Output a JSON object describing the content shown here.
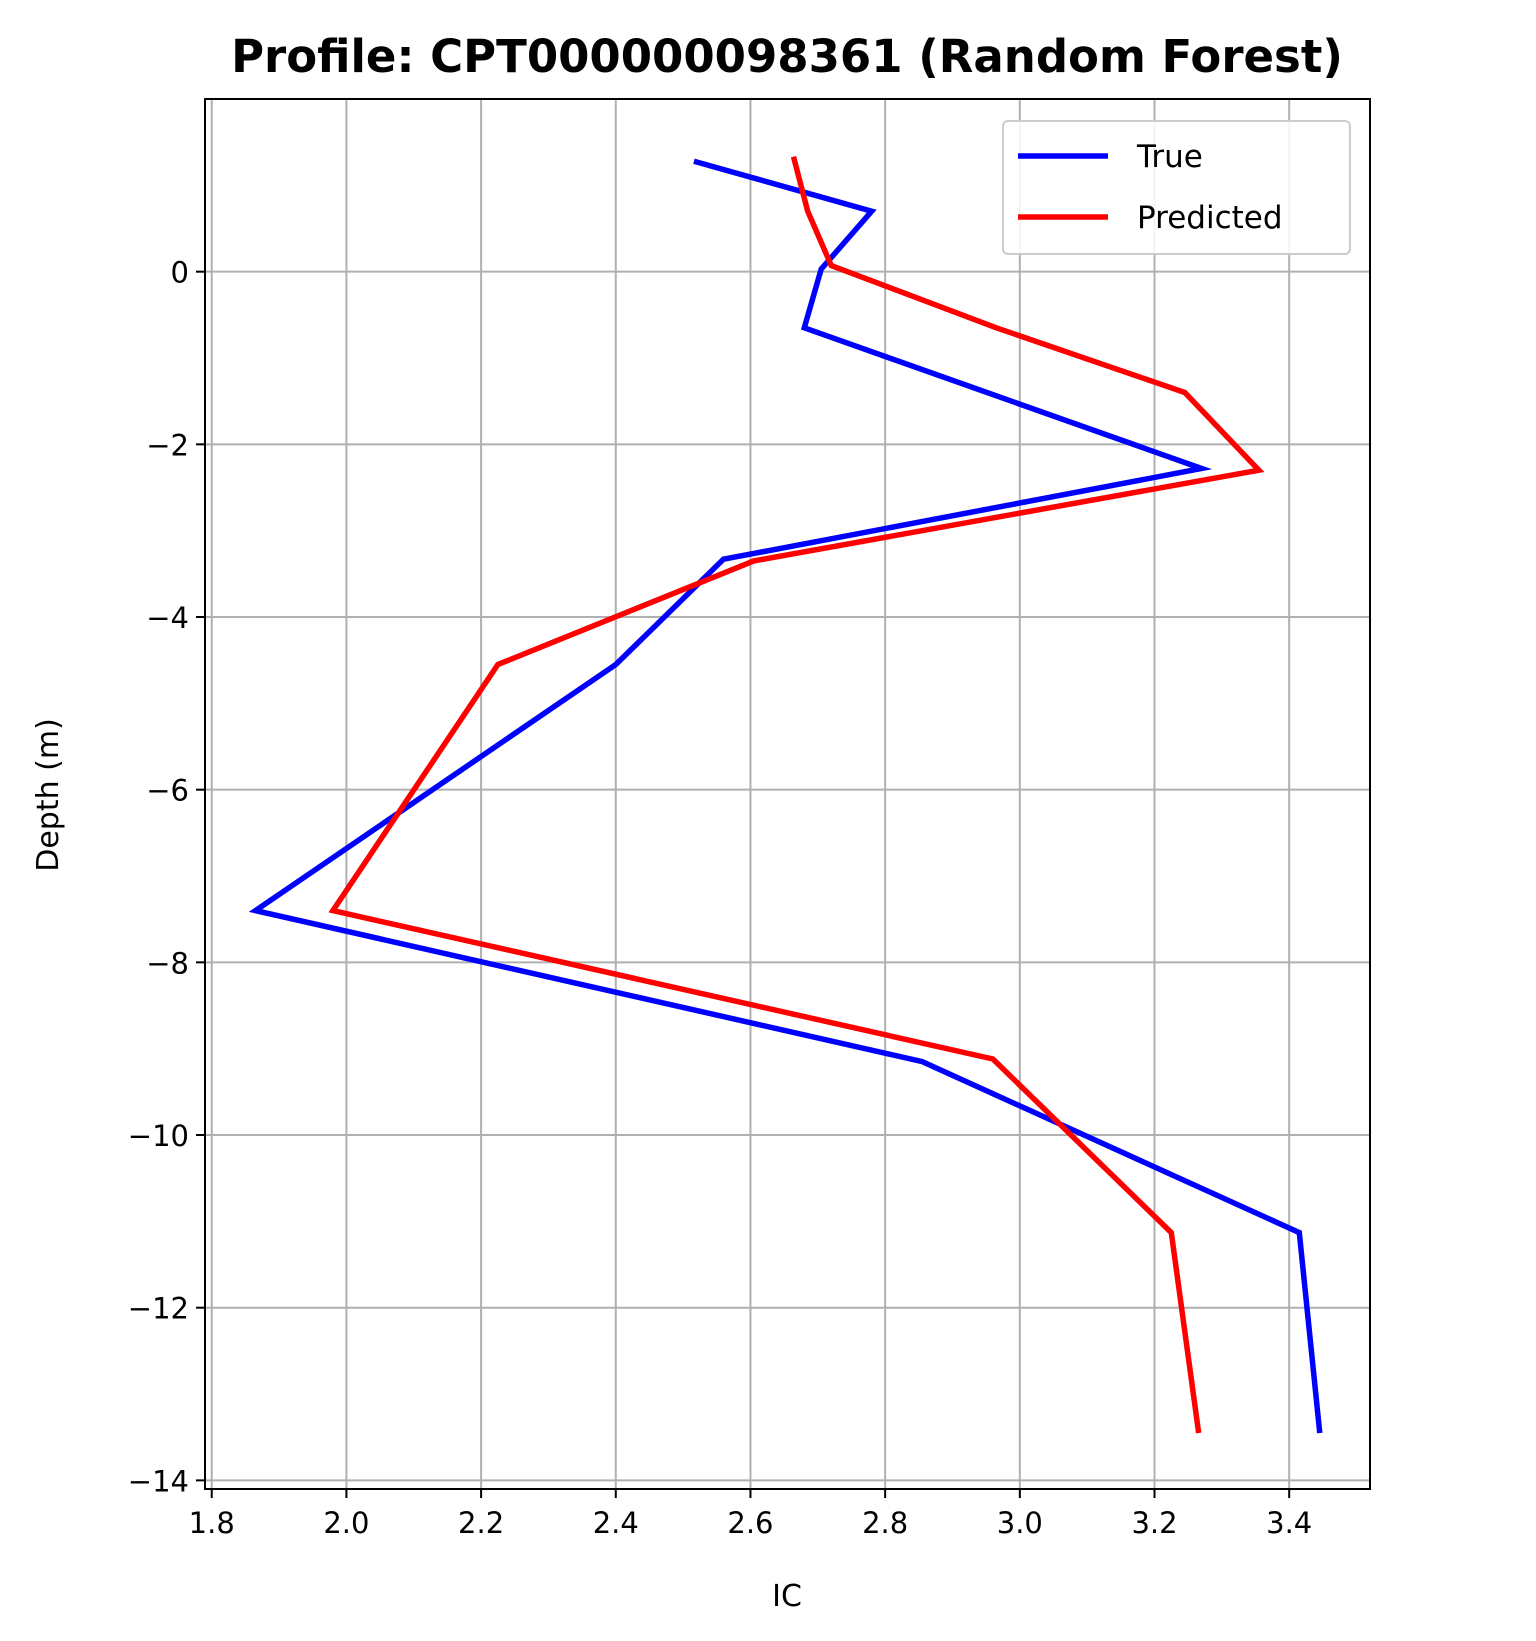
{
  "chart_data": {
    "type": "line",
    "title": "Profile: CPT000000098361 (Random Forest)",
    "xlabel": "IC",
    "ylabel": "Depth (m)",
    "xlim": [
      1.79,
      3.52
    ],
    "ylim": [
      -14.1,
      2.0
    ],
    "xticks": [
      1.8,
      2.0,
      2.2,
      2.4,
      2.6,
      2.8,
      3.0,
      3.2,
      3.4
    ],
    "xtick_labels": [
      "1.8",
      "2.0",
      "2.2",
      "2.4",
      "2.6",
      "2.8",
      "3.0",
      "3.2",
      "3.4"
    ],
    "yticks": [
      0,
      -2,
      -4,
      -6,
      -8,
      -10,
      -12,
      -14
    ],
    "ytick_labels": [
      "0",
      "−2",
      "−4",
      "−6",
      "−8",
      "−10",
      "−12",
      "−14"
    ],
    "grid": true,
    "legend_position": "top-right",
    "series": [
      {
        "name": "True",
        "color": "#0000ff",
        "x": [
          2.52,
          2.78,
          2.705,
          2.68,
          3.27,
          2.56,
          2.4,
          1.865,
          2.855,
          3.415,
          3.445
        ],
        "y": [
          1.27,
          0.7,
          0.03,
          -0.65,
          -2.28,
          -3.33,
          -4.55,
          -7.4,
          -9.15,
          -11.13,
          -13.42
        ]
      },
      {
        "name": "Predicted",
        "color": "#ff0000",
        "x": [
          2.665,
          2.685,
          2.72,
          2.965,
          3.245,
          3.355,
          2.605,
          2.225,
          1.98,
          2.96,
          3.225,
          3.265
        ],
        "y": [
          1.3,
          0.7,
          0.07,
          -0.65,
          -1.4,
          -2.3,
          -3.35,
          -4.55,
          -7.4,
          -9.12,
          -11.13,
          -13.42
        ]
      }
    ]
  }
}
